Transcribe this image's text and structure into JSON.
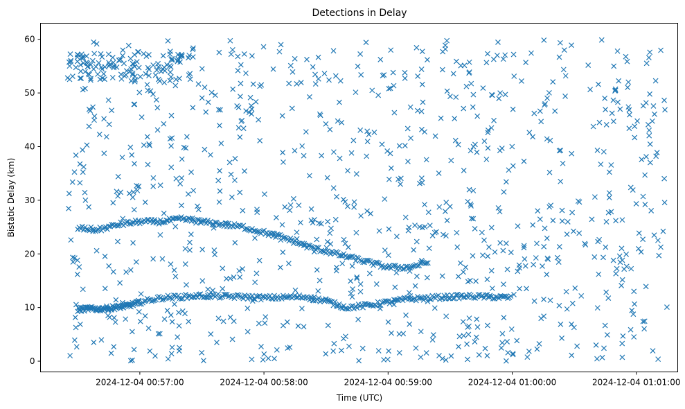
{
  "chart_data": {
    "type": "scatter",
    "title": "Detections in Delay",
    "xlabel": "Time (UTC)",
    "ylabel": "Bistatic Delay (km)",
    "marker": "x",
    "color": "#1f77b4",
    "x_range": [
      "2024-12-04 00:56:12",
      "2024-12-04 01:01:20"
    ],
    "ylim": [
      -2,
      63
    ],
    "x_ticks": [
      "2024-12-04 00:57:00",
      "2024-12-04 00:58:00",
      "2024-12-04 00:59:00",
      "2024-12-04 01:00:00",
      "2024-12-04 01:01:00"
    ],
    "y_ticks": [
      "0",
      "10",
      "20",
      "30",
      "40",
      "50",
      "60"
    ],
    "grid": false,
    "tracks": [
      {
        "description": "track near 9-12 km",
        "points": [
          [
            "2024-12-04 00:56:30",
            9.6
          ],
          [
            "2024-12-04 00:56:35",
            9.8
          ],
          [
            "2024-12-04 00:56:40",
            9.7
          ],
          [
            "2024-12-04 00:56:45",
            9.9
          ],
          [
            "2024-12-04 00:56:50",
            10.1
          ],
          [
            "2024-12-04 00:56:55",
            10.4
          ],
          [
            "2024-12-04 00:57:00",
            11.0
          ],
          [
            "2024-12-04 00:57:10",
            11.8
          ],
          [
            "2024-12-04 00:57:20",
            12.0
          ],
          [
            "2024-12-04 00:57:30",
            12.2
          ],
          [
            "2024-12-04 00:57:40",
            12.1
          ],
          [
            "2024-12-04 00:57:50",
            12.0
          ],
          [
            "2024-12-04 00:58:00",
            11.8
          ],
          [
            "2024-12-04 00:58:10",
            11.9
          ],
          [
            "2024-12-04 00:58:20",
            12.0
          ],
          [
            "2024-12-04 00:58:30",
            11.2
          ],
          [
            "2024-12-04 00:58:40",
            10.0
          ],
          [
            "2024-12-04 00:58:50",
            10.4
          ],
          [
            "2024-12-04 00:59:00",
            11.0
          ],
          [
            "2024-12-04 00:59:10",
            11.6
          ],
          [
            "2024-12-04 00:59:20",
            11.8
          ],
          [
            "2024-12-04 00:59:30",
            12.0
          ],
          [
            "2024-12-04 00:59:40",
            12.1
          ],
          [
            "2024-12-04 00:59:50",
            12.0
          ],
          [
            "2024-12-04 01:00:00",
            11.8
          ]
        ]
      },
      {
        "description": "track near 24-27 km descending to 17 km",
        "points": [
          [
            "2024-12-04 00:56:30",
            24.8
          ],
          [
            "2024-12-04 00:56:40",
            24.5
          ],
          [
            "2024-12-04 00:56:50",
            25.5
          ],
          [
            "2024-12-04 00:57:00",
            26.0
          ],
          [
            "2024-12-04 00:57:10",
            26.0
          ],
          [
            "2024-12-04 00:57:20",
            26.5
          ],
          [
            "2024-12-04 00:57:30",
            26.0
          ],
          [
            "2024-12-04 00:57:40",
            25.5
          ],
          [
            "2024-12-04 00:57:50",
            25.0
          ],
          [
            "2024-12-04 00:58:00",
            24.0
          ],
          [
            "2024-12-04 00:58:10",
            23.0
          ],
          [
            "2024-12-04 00:58:20",
            21.5
          ],
          [
            "2024-12-04 00:58:30",
            20.5
          ],
          [
            "2024-12-04 00:58:40",
            19.5
          ],
          [
            "2024-12-04 00:58:50",
            18.5
          ],
          [
            "2024-12-04 00:59:00",
            17.5
          ],
          [
            "2024-12-04 00:59:10",
            17.5
          ],
          [
            "2024-12-04 00:59:20",
            18.5
          ]
        ]
      }
    ]
  }
}
